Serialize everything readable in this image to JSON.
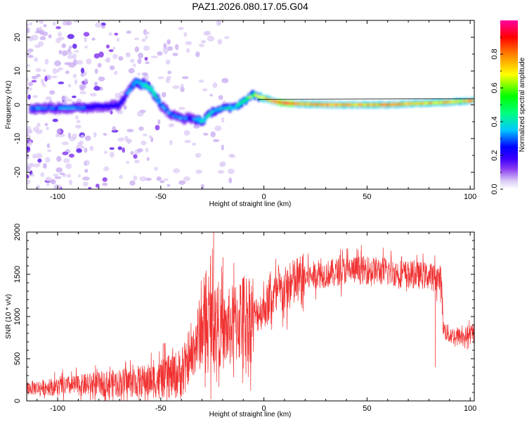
{
  "title": "PAZ1.2026.080.17.05.G04",
  "chart_data": [
    {
      "type": "heatmap",
      "name": "spectrogram",
      "xlabel": "Height of straight line (km)",
      "ylabel": "Frequency (Hz)",
      "xlim": [
        -115,
        102
      ],
      "ylim": [
        -25,
        25
      ],
      "xticks": [
        -100,
        -50,
        0,
        50,
        100
      ],
      "xtick_labels": [
        "-100",
        "-50",
        "0",
        "50",
        "100"
      ],
      "yticks": [
        -20,
        -10,
        0,
        10,
        20
      ],
      "ytick_labels": [
        "-20",
        "-10",
        "0",
        "10",
        "20"
      ],
      "colorbar": {
        "label": "Normalized spectral amplitude",
        "range": [
          0,
          1
        ],
        "ticks": [
          0.0,
          0.2,
          0.4,
          0.6,
          0.8
        ],
        "tick_labels": [
          "0.0",
          "0.2",
          "0.4",
          "0.6",
          "0.8"
        ],
        "colors": [
          "#ffffff",
          "#d9c8f5",
          "#8a3cf0",
          "#3c00ff",
          "#0000ff",
          "#00c8ff",
          "#00ff80",
          "#00ff00",
          "#ffff00",
          "#ff8000",
          "#ff0000",
          "#ff00a0"
        ]
      },
      "ridge": {
        "x": [
          -110,
          -100,
          -90,
          -80,
          -70,
          -62,
          -55,
          -50,
          -45,
          -40,
          -35,
          -30,
          -25,
          -20,
          -15,
          -10,
          -5,
          0,
          5,
          10,
          20,
          30,
          40,
          50,
          60,
          70,
          80,
          90,
          95,
          100
        ],
        "freq": [
          -1,
          -1,
          -1,
          -0.5,
          0,
          7,
          5,
          0,
          -3,
          -4,
          -4,
          -5,
          -2,
          -1,
          -1,
          1,
          3,
          2,
          1,
          0.5,
          0.2,
          0,
          0,
          0,
          0,
          0.3,
          0.5,
          0.8,
          1,
          1.2
        ],
        "amplitude": [
          0.25,
          0.25,
          0.25,
          0.2,
          0.2,
          0.3,
          0.4,
          0.25,
          0.25,
          0.25,
          0.2,
          0.35,
          0.35,
          0.3,
          0.35,
          0.45,
          0.5,
          0.6,
          0.75,
          0.85,
          0.7,
          0.75,
          0.7,
          0.65,
          0.75,
          0.7,
          0.65,
          0.7,
          0.55,
          0.75
        ]
      }
    },
    {
      "type": "line",
      "name": "snr",
      "xlabel": "Height of straight line (km)",
      "ylabel": "SNR (10 * v/v)",
      "xlim": [
        -115,
        102
      ],
      "ylim": [
        0,
        2000
      ],
      "xticks": [
        -100,
        -50,
        0,
        50,
        100
      ],
      "xtick_labels": [
        "-100",
        "-50",
        "0",
        "50",
        "100"
      ],
      "yticks": [
        0,
        500,
        1000,
        1500,
        2000
      ],
      "ytick_labels": [
        "0",
        "500",
        "1000",
        "1500",
        "2000"
      ],
      "color": "#f03030",
      "envelope": {
        "x": [
          -115,
          -100,
          -80,
          -60,
          -50,
          -45,
          -40,
          -36,
          -33,
          -30,
          -27,
          -25,
          -22,
          -20,
          -15,
          -10,
          -5,
          0,
          5,
          10,
          15,
          20,
          25,
          30,
          40,
          50,
          60,
          70,
          80,
          86,
          87,
          90,
          95,
          100,
          102
        ],
        "y": [
          150,
          170,
          200,
          230,
          250,
          290,
          330,
          450,
          700,
          850,
          900,
          950,
          920,
          800,
          900,
          1000,
          1000,
          1100,
          1250,
          1300,
          1400,
          1450,
          1500,
          1500,
          1550,
          1550,
          1530,
          1500,
          1480,
          1450,
          850,
          780,
          760,
          780,
          780
        ]
      },
      "spikes": [
        {
          "x": -24.5,
          "y": 2000
        },
        {
          "x": -26,
          "y": 1720
        },
        {
          "x": -49,
          "y": 680
        },
        {
          "x": 40,
          "y": 1800
        },
        {
          "x": 47,
          "y": 1780
        },
        {
          "x": 83,
          "y": 400
        },
        {
          "x": -30,
          "y": 1000
        },
        {
          "x": -20,
          "y": 1700
        }
      ]
    }
  ]
}
